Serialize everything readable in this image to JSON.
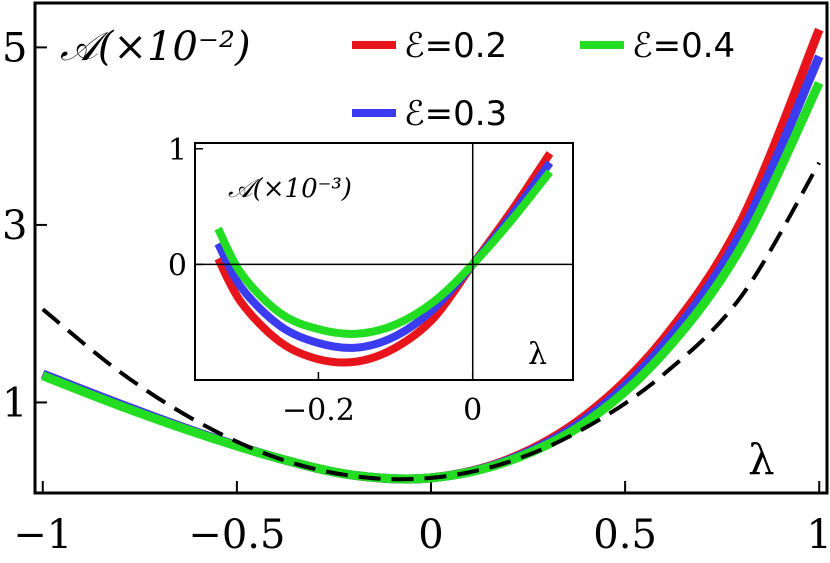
{
  "chart_data": [
    {
      "type": "line",
      "ylabel": "𝒜(×10⁻²)",
      "xlabel": "λ",
      "xlim": [
        -1.02,
        1.02
      ],
      "ylim": [
        -0.02,
        5.5
      ],
      "xticks": [
        "-1",
        "-0.5",
        "0",
        "0.5",
        "1"
      ],
      "yticks": [
        "1",
        "3",
        "5"
      ],
      "xtick_values": [
        -1,
        -0.5,
        0,
        0.5,
        1
      ],
      "ytick_values": [
        1,
        3,
        5
      ],
      "legend_position": "top-right",
      "series": [
        {
          "name": "ℰ=0.2",
          "color": "#e8141b",
          "style": "solid",
          "x": [
            -1.0,
            -0.8,
            -0.6,
            -0.4,
            -0.2,
            0.0,
            0.2,
            0.4,
            0.6,
            0.8,
            1.0
          ],
          "y": [
            1.32,
            0.98,
            0.66,
            0.38,
            0.18,
            0.15,
            0.36,
            0.86,
            1.72,
            3.05,
            5.2
          ]
        },
        {
          "name": "ℰ=0.3",
          "color": "#3b3bf0",
          "style": "solid",
          "x": [
            -1.0,
            -0.8,
            -0.6,
            -0.4,
            -0.2,
            0.0,
            0.2,
            0.4,
            0.6,
            0.8,
            1.0
          ],
          "y": [
            1.32,
            0.98,
            0.66,
            0.38,
            0.18,
            0.15,
            0.35,
            0.82,
            1.65,
            2.92,
            4.9
          ]
        },
        {
          "name": "ℰ=0.4",
          "color": "#22dd22",
          "style": "solid",
          "x": [
            -1.0,
            -0.8,
            -0.6,
            -0.4,
            -0.2,
            0.0,
            0.2,
            0.4,
            0.6,
            0.8,
            1.0
          ],
          "y": [
            1.3,
            0.96,
            0.65,
            0.38,
            0.18,
            0.15,
            0.34,
            0.78,
            1.56,
            2.76,
            4.6
          ]
        },
        {
          "style": "dashed",
          "color": "#000000",
          "x": [
            -1.0,
            -0.8,
            -0.6,
            -0.4,
            -0.2,
            0.0,
            0.2,
            0.4,
            0.6,
            0.8,
            1.0
          ],
          "y": [
            2.05,
            1.34,
            0.78,
            0.38,
            0.17,
            0.15,
            0.33,
            0.72,
            1.32,
            2.2,
            3.7
          ]
        }
      ]
    },
    {
      "type": "line",
      "ylabel": "𝒜(×10⁻³)",
      "xlabel": "λ",
      "xlim": [
        -0.36,
        0.13
      ],
      "ylim": [
        -1.0,
        1.05
      ],
      "xticks": [
        "-0.2",
        "0"
      ],
      "yticks": [
        "0",
        "1"
      ],
      "xtick_values": [
        -0.2,
        0
      ],
      "ytick_values": [
        0,
        1
      ],
      "series": [
        {
          "name": "ℰ=0.2",
          "color": "#e8141b",
          "x": [
            -0.33,
            -0.3,
            -0.25,
            -0.2,
            -0.15,
            -0.1,
            -0.05,
            0.0,
            0.05,
            0.1
          ],
          "y": [
            0.05,
            -0.33,
            -0.67,
            -0.82,
            -0.84,
            -0.72,
            -0.46,
            0.0,
            0.46,
            0.96
          ]
        },
        {
          "name": "ℰ=0.3",
          "color": "#3b3bf0",
          "x": [
            -0.33,
            -0.3,
            -0.25,
            -0.2,
            -0.15,
            -0.1,
            -0.05,
            0.0,
            0.05,
            0.1
          ],
          "y": [
            0.18,
            -0.2,
            -0.53,
            -0.68,
            -0.72,
            -0.62,
            -0.38,
            0.0,
            0.42,
            0.88
          ]
        },
        {
          "name": "ℰ=0.4",
          "color": "#22dd22",
          "x": [
            -0.33,
            -0.3,
            -0.25,
            -0.2,
            -0.15,
            -0.1,
            -0.05,
            0.0,
            0.05,
            0.1
          ],
          "y": [
            0.31,
            -0.08,
            -0.42,
            -0.56,
            -0.6,
            -0.52,
            -0.32,
            0.0,
            0.38,
            0.8
          ]
        }
      ]
    }
  ]
}
